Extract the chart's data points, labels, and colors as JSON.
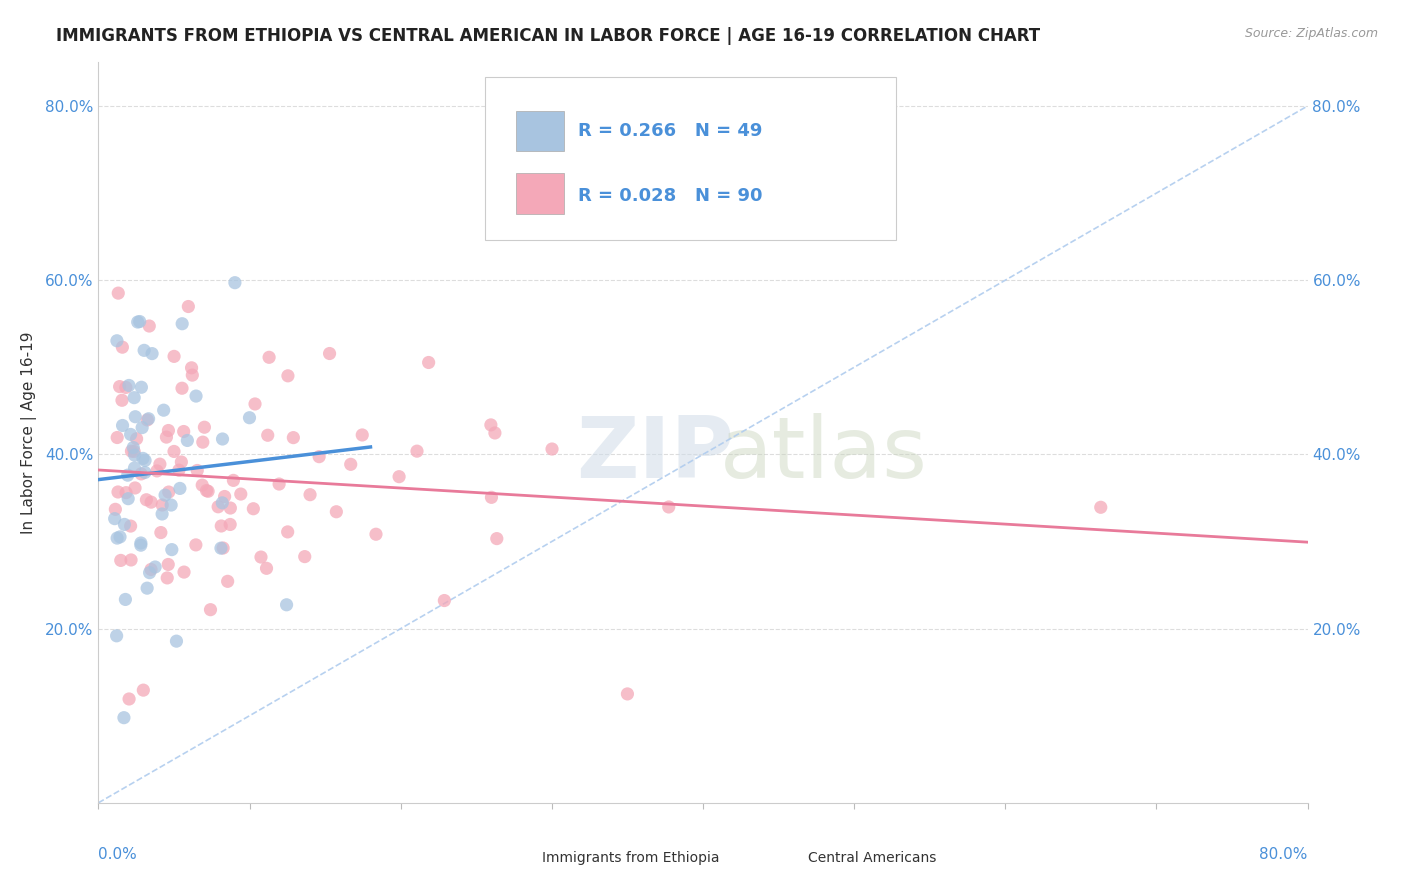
{
  "title": "IMMIGRANTS FROM ETHIOPIA VS CENTRAL AMERICAN IN LABOR FORCE | AGE 16-19 CORRELATION CHART",
  "source": "Source: ZipAtlas.com",
  "ylabel": "In Labor Force | Age 16-19",
  "xlim": [
    0.0,
    0.8
  ],
  "ylim": [
    0.0,
    0.85
  ],
  "ethiopia_R": 0.266,
  "ethiopia_N": 49,
  "central_R": 0.028,
  "central_N": 90,
  "ethiopia_color": "#a8c4e0",
  "central_color": "#f4a8b8",
  "ethiopia_line_color": "#4a90d9",
  "central_line_color": "#e87a9a",
  "dashed_line_color": "#b0ccee",
  "grid_color": "#dddddd",
  "tick_color": "#4a90d9",
  "legend_eth_color": "#a8c4e0",
  "legend_ca_color": "#f4a8b8",
  "legend_text_color": "#4a90d9",
  "watermark_zip_color": "#d0dce8",
  "watermark_atlas_color": "#c8d4bc"
}
